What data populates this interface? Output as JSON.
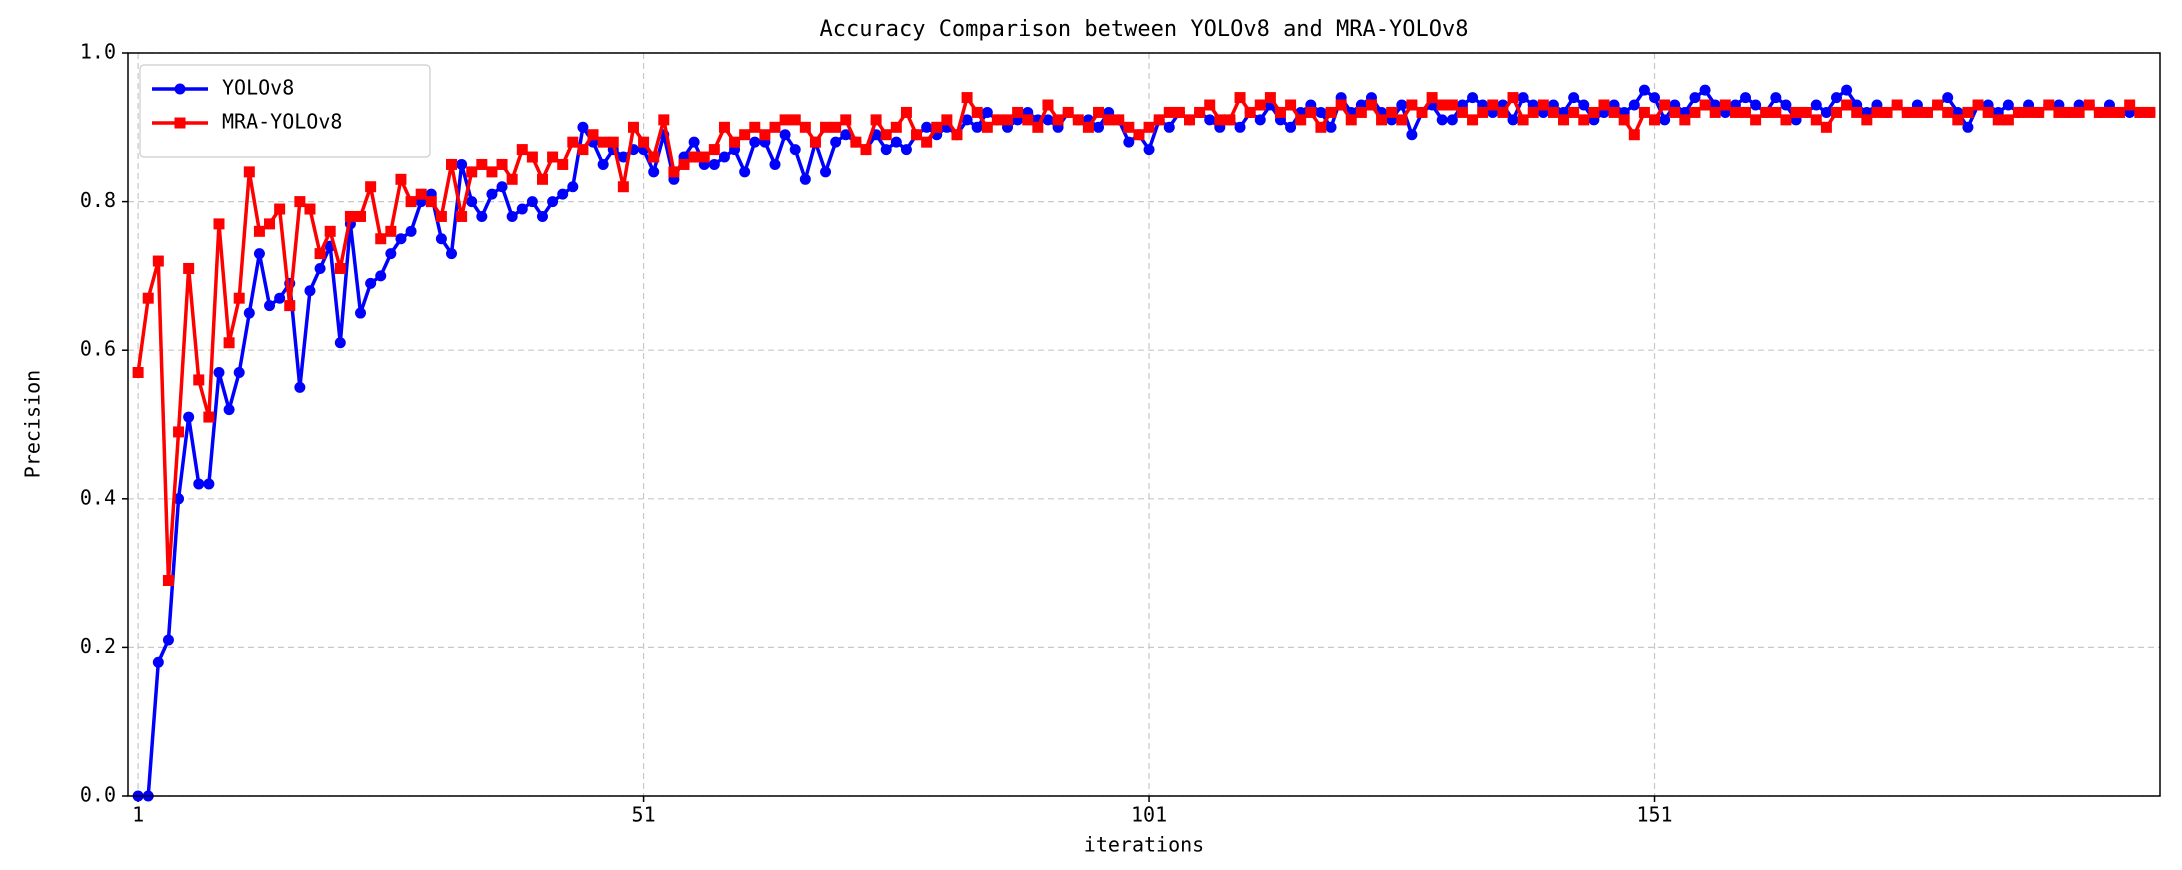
{
  "chart_data": {
    "type": "line",
    "title": "Accuracy Comparison between YOLOv8 and MRA-YOLOv8",
    "x_label": "iterations",
    "y_label": "Precision",
    "x": [
      1,
      2,
      3,
      4,
      5,
      6,
      7,
      8,
      9,
      10,
      11,
      12,
      13,
      14,
      15,
      16,
      17,
      18,
      19,
      20,
      21,
      22,
      23,
      24,
      25,
      26,
      27,
      28,
      29,
      30,
      31,
      32,
      33,
      34,
      35,
      36,
      37,
      38,
      39,
      40,
      41,
      42,
      43,
      44,
      45,
      46,
      47,
      48,
      49,
      50,
      51,
      52,
      53,
      54,
      55,
      56,
      57,
      58,
      59,
      60,
      61,
      62,
      63,
      64,
      65,
      66,
      67,
      68,
      69,
      70,
      71,
      72,
      73,
      74,
      75,
      76,
      77,
      78,
      79,
      80,
      81,
      82,
      83,
      84,
      85,
      86,
      87,
      88,
      89,
      90,
      91,
      92,
      93,
      94,
      95,
      96,
      97,
      98,
      99,
      100,
      101,
      102,
      103,
      104,
      105,
      106,
      107,
      108,
      109,
      110,
      111,
      112,
      113,
      114,
      115,
      116,
      117,
      118,
      119,
      120,
      121,
      122,
      123,
      124,
      125,
      126,
      127,
      128,
      129,
      130,
      131,
      132,
      133,
      134,
      135,
      136,
      137,
      138,
      139,
      140,
      141,
      142,
      143,
      144,
      145,
      146,
      147,
      148,
      149,
      150,
      151,
      152,
      153,
      154,
      155,
      156,
      157,
      158,
      159,
      160,
      161,
      162,
      163,
      164,
      165,
      166,
      167,
      168,
      169,
      170,
      171,
      172,
      173,
      174,
      175,
      176,
      177,
      178,
      179,
      180,
      181,
      182,
      183,
      184,
      185,
      186,
      187,
      188,
      189,
      190,
      191,
      192,
      193,
      194,
      195,
      196,
      197,
      198,
      199,
      200
    ],
    "series": [
      {
        "name": "YOLOv8",
        "color": "#0000ff",
        "marker": "circle",
        "values": [
          0,
          0,
          0.18,
          0.21,
          0.4,
          0.51,
          0.42,
          0.42,
          0.57,
          0.52,
          0.57,
          0.65,
          0.73,
          0.66,
          0.67,
          0.69,
          0.55,
          0.68,
          0.71,
          0.74,
          0.61,
          0.77,
          0.65,
          0.69,
          0.7,
          0.73,
          0.75,
          0.76,
          0.8,
          0.81,
          0.75,
          0.73,
          0.85,
          0.8,
          0.78,
          0.81,
          0.82,
          0.78,
          0.79,
          0.8,
          0.78,
          0.8,
          0.81,
          0.82,
          0.9,
          0.88,
          0.85,
          0.87,
          0.86,
          0.87,
          0.87,
          0.84,
          0.89,
          0.83,
          0.86,
          0.88,
          0.85,
          0.85,
          0.86,
          0.87,
          0.84,
          0.88,
          0.88,
          0.85,
          0.89,
          0.87,
          0.83,
          0.88,
          0.84,
          0.88,
          0.89,
          0.88,
          0.87,
          0.89,
          0.87,
          0.88,
          0.87,
          0.89,
          0.9,
          0.89,
          0.9,
          0.89,
          0.91,
          0.9,
          0.92,
          0.91,
          0.9,
          0.91,
          0.92,
          0.91,
          0.91,
          0.9,
          0.92,
          0.91,
          0.91,
          0.9,
          0.92,
          0.91,
          0.88,
          0.89,
          0.87,
          0.91,
          0.9,
          0.92,
          0.91,
          0.92,
          0.91,
          0.9,
          0.91,
          0.9,
          0.92,
          0.91,
          0.93,
          0.91,
          0.9,
          0.92,
          0.93,
          0.92,
          0.9,
          0.94,
          0.92,
          0.93,
          0.94,
          0.92,
          0.91,
          0.93,
          0.89,
          0.92,
          0.93,
          0.91,
          0.91,
          0.93,
          0.94,
          0.93,
          0.92,
          0.93,
          0.91,
          0.94,
          0.93,
          0.92,
          0.93,
          0.92,
          0.94,
          0.93,
          0.91,
          0.92,
          0.93,
          0.92,
          0.93,
          0.95,
          0.94,
          0.91,
          0.93,
          0.92,
          0.94,
          0.95,
          0.93,
          0.92,
          0.93,
          0.94,
          0.93,
          0.92,
          0.94,
          0.93,
          0.91,
          0.92,
          0.93,
          0.92,
          0.94,
          0.95,
          0.93,
          0.92,
          0.93,
          0.92,
          0.93,
          0.92,
          0.93,
          0.92,
          0.93,
          0.94,
          0.92,
          0.9,
          0.93,
          0.93,
          0.92,
          0.93,
          0.92,
          0.93,
          0.92,
          0.93,
          0.93,
          0.92,
          0.93,
          0.93,
          0.92,
          0.93,
          0.92,
          0.92,
          0.92,
          0.92
        ]
      },
      {
        "name": "MRA-YOLOv8",
        "color": "#ff0000",
        "marker": "square",
        "values": [
          0.57,
          0.67,
          0.72,
          0.29,
          0.49,
          0.71,
          0.56,
          0.51,
          0.77,
          0.61,
          0.67,
          0.84,
          0.76,
          0.77,
          0.79,
          0.66,
          0.8,
          0.79,
          0.73,
          0.76,
          0.71,
          0.78,
          0.78,
          0.82,
          0.75,
          0.76,
          0.83,
          0.8,
          0.81,
          0.8,
          0.78,
          0.85,
          0.78,
          0.84,
          0.85,
          0.84,
          0.85,
          0.83,
          0.87,
          0.86,
          0.83,
          0.86,
          0.85,
          0.88,
          0.87,
          0.89,
          0.88,
          0.88,
          0.82,
          0.9,
          0.88,
          0.86,
          0.91,
          0.84,
          0.85,
          0.86,
          0.86,
          0.87,
          0.9,
          0.88,
          0.89,
          0.9,
          0.89,
          0.9,
          0.91,
          0.91,
          0.9,
          0.88,
          0.9,
          0.9,
          0.91,
          0.88,
          0.87,
          0.91,
          0.89,
          0.9,
          0.92,
          0.89,
          0.88,
          0.9,
          0.91,
          0.89,
          0.94,
          0.92,
          0.9,
          0.91,
          0.91,
          0.92,
          0.91,
          0.9,
          0.93,
          0.91,
          0.92,
          0.91,
          0.9,
          0.92,
          0.91,
          0.91,
          0.9,
          0.89,
          0.9,
          0.91,
          0.92,
          0.92,
          0.91,
          0.92,
          0.93,
          0.91,
          0.91,
          0.94,
          0.92,
          0.93,
          0.94,
          0.92,
          0.93,
          0.91,
          0.92,
          0.9,
          0.92,
          0.93,
          0.91,
          0.92,
          0.93,
          0.91,
          0.92,
          0.91,
          0.93,
          0.92,
          0.94,
          0.93,
          0.93,
          0.92,
          0.91,
          0.92,
          0.93,
          0.92,
          0.94,
          0.91,
          0.92,
          0.93,
          0.92,
          0.91,
          0.92,
          0.91,
          0.92,
          0.93,
          0.92,
          0.91,
          0.89,
          0.92,
          0.91,
          0.93,
          0.92,
          0.91,
          0.92,
          0.93,
          0.92,
          0.93,
          0.92,
          0.92,
          0.91,
          0.92,
          0.92,
          0.91,
          0.92,
          0.92,
          0.91,
          0.9,
          0.92,
          0.93,
          0.92,
          0.91,
          0.92,
          0.92,
          0.93,
          0.92,
          0.92,
          0.92,
          0.93,
          0.92,
          0.91,
          0.92,
          0.93,
          0.92,
          0.91,
          0.91,
          0.92,
          0.92,
          0.92,
          0.93,
          0.92,
          0.92,
          0.92,
          0.93,
          0.92,
          0.92,
          0.92,
          0.93,
          0.92,
          0.92
        ]
      }
    ],
    "xlim": [
      0,
      201
    ],
    "ylim": [
      0,
      1
    ],
    "xticks": [
      1,
      51,
      101,
      151
    ],
    "yticks": [
      {
        "value": 0,
        "label": "0.0"
      },
      0.2,
      0.4,
      0.6,
      0.8,
      {
        "value": 1,
        "label": "1.0"
      }
    ],
    "grid": true,
    "legend": "upper left"
  }
}
